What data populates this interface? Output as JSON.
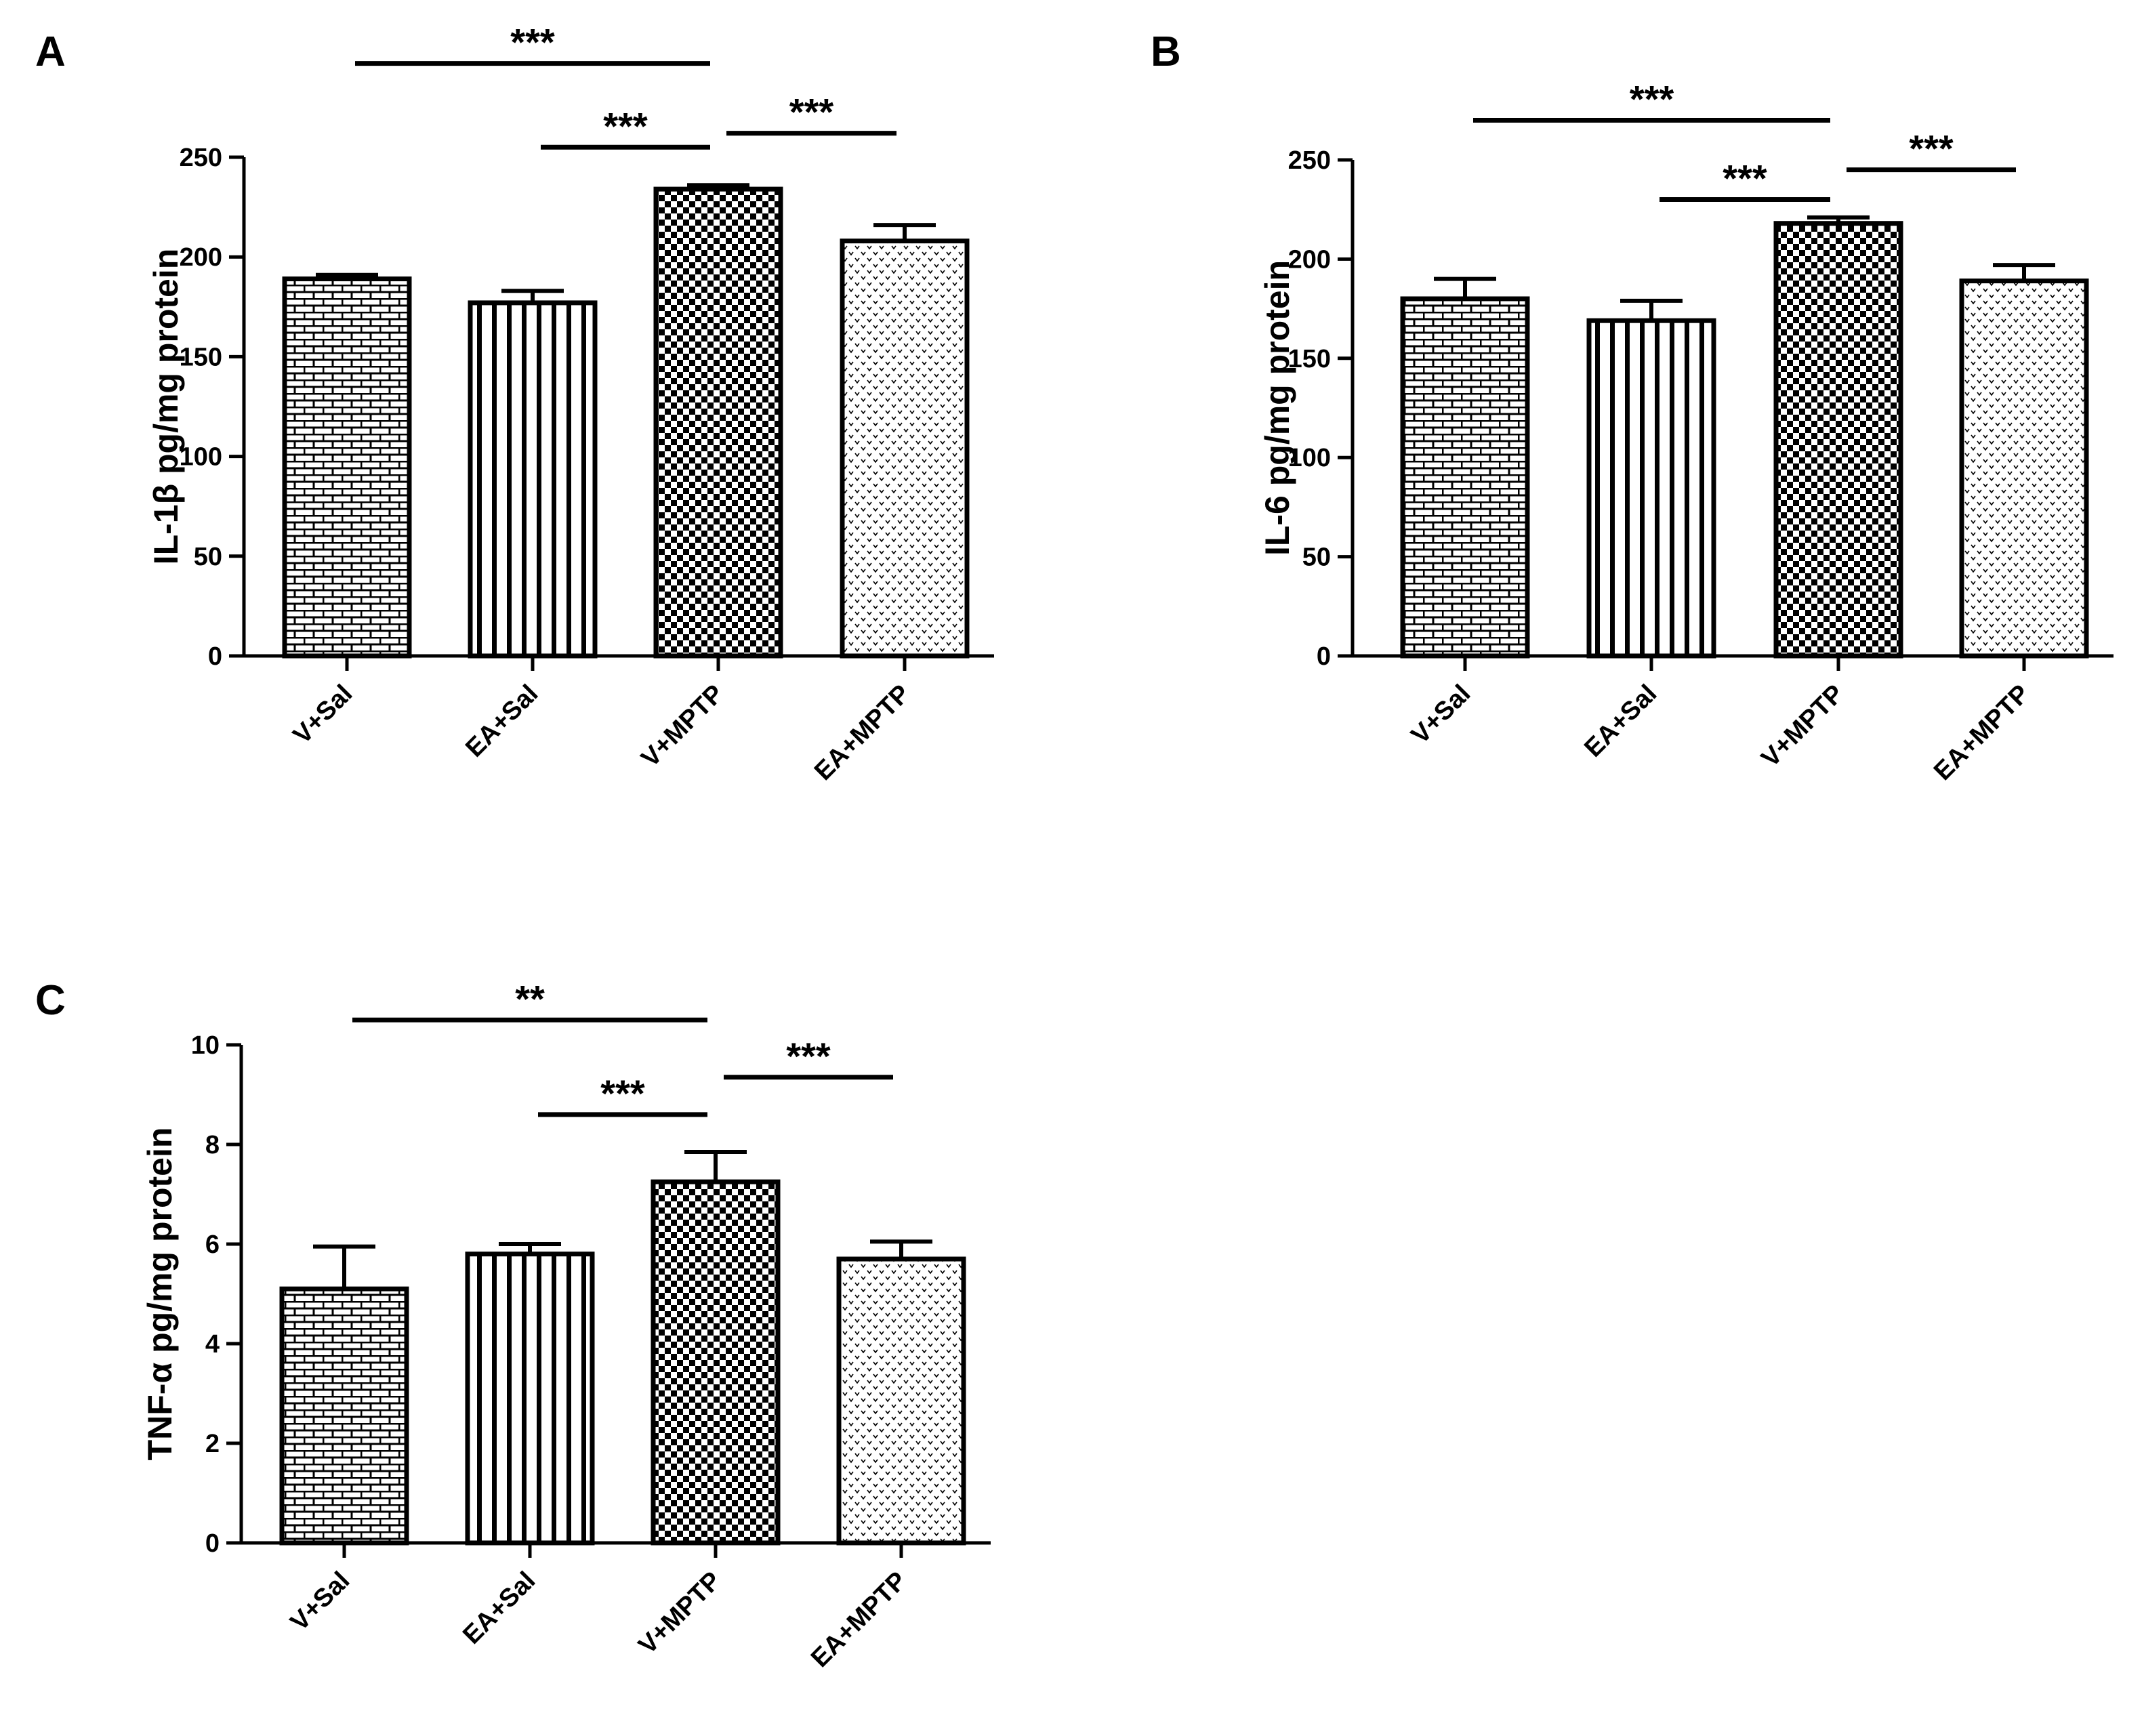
{
  "figure": {
    "type": "multi-panel bar chart",
    "colors": {
      "ink": "#000000",
      "background": "#ffffff"
    }
  },
  "chart_data": [
    {
      "type": "bar",
      "panel": "A",
      "ylabel": "IL-1β pg/mg protein",
      "xlabel": "",
      "ylim": [
        0,
        250
      ],
      "yticks": [
        0,
        50,
        100,
        150,
        200,
        250
      ],
      "categories": [
        "V+Sal",
        "EA+Sal",
        "V+MPTP",
        "EA+MPTP"
      ],
      "values": [
        189,
        177,
        234,
        208
      ],
      "errors": [
        2,
        6,
        2,
        8
      ],
      "patterns": [
        "brick",
        "vertical",
        "checker",
        "dots"
      ],
      "significance": [
        {
          "from": 0,
          "to": 2,
          "label": "***",
          "y": 297
        },
        {
          "from": 1,
          "to": 2,
          "label": "***",
          "y": 255
        },
        {
          "from": 2,
          "to": 3,
          "label": "***",
          "y": 262
        }
      ]
    },
    {
      "type": "bar",
      "panel": "B",
      "ylabel": "IL-6 pg/mg protein",
      "xlabel": "",
      "ylim": [
        0,
        250
      ],
      "yticks": [
        0,
        50,
        100,
        150,
        200,
        250
      ],
      "categories": [
        "V+Sal",
        "EA+Sal",
        "V+MPTP",
        "EA+MPTP"
      ],
      "values": [
        180,
        169,
        218,
        189
      ],
      "errors": [
        10,
        10,
        3,
        8
      ],
      "patterns": [
        "brick",
        "vertical",
        "checker",
        "dots"
      ],
      "significance": [
        {
          "from": 0,
          "to": 2,
          "label": "***",
          "y": 270
        },
        {
          "from": 1,
          "to": 2,
          "label": "***",
          "y": 230
        },
        {
          "from": 2,
          "to": 3,
          "label": "***",
          "y": 245
        }
      ]
    },
    {
      "type": "bar",
      "panel": "C",
      "ylabel": "TNF-α pg/mg protein",
      "xlabel": "",
      "ylim": [
        0,
        10
      ],
      "yticks": [
        0,
        2,
        4,
        6,
        8,
        10
      ],
      "categories": [
        "V+Sal",
        "EA+Sal",
        "V+MPTP",
        "EA+MPTP"
      ],
      "values": [
        5.1,
        5.8,
        7.25,
        5.7
      ],
      "errors": [
        0.85,
        0.2,
        0.6,
        0.35
      ],
      "patterns": [
        "brick",
        "vertical",
        "checker",
        "dots"
      ],
      "significance": [
        {
          "from": 0,
          "to": 2,
          "label": "**",
          "y": 10.5
        },
        {
          "from": 1,
          "to": 2,
          "label": "***",
          "y": 8.6
        },
        {
          "from": 2,
          "to": 3,
          "label": "***",
          "y": 9.35
        }
      ]
    }
  ]
}
